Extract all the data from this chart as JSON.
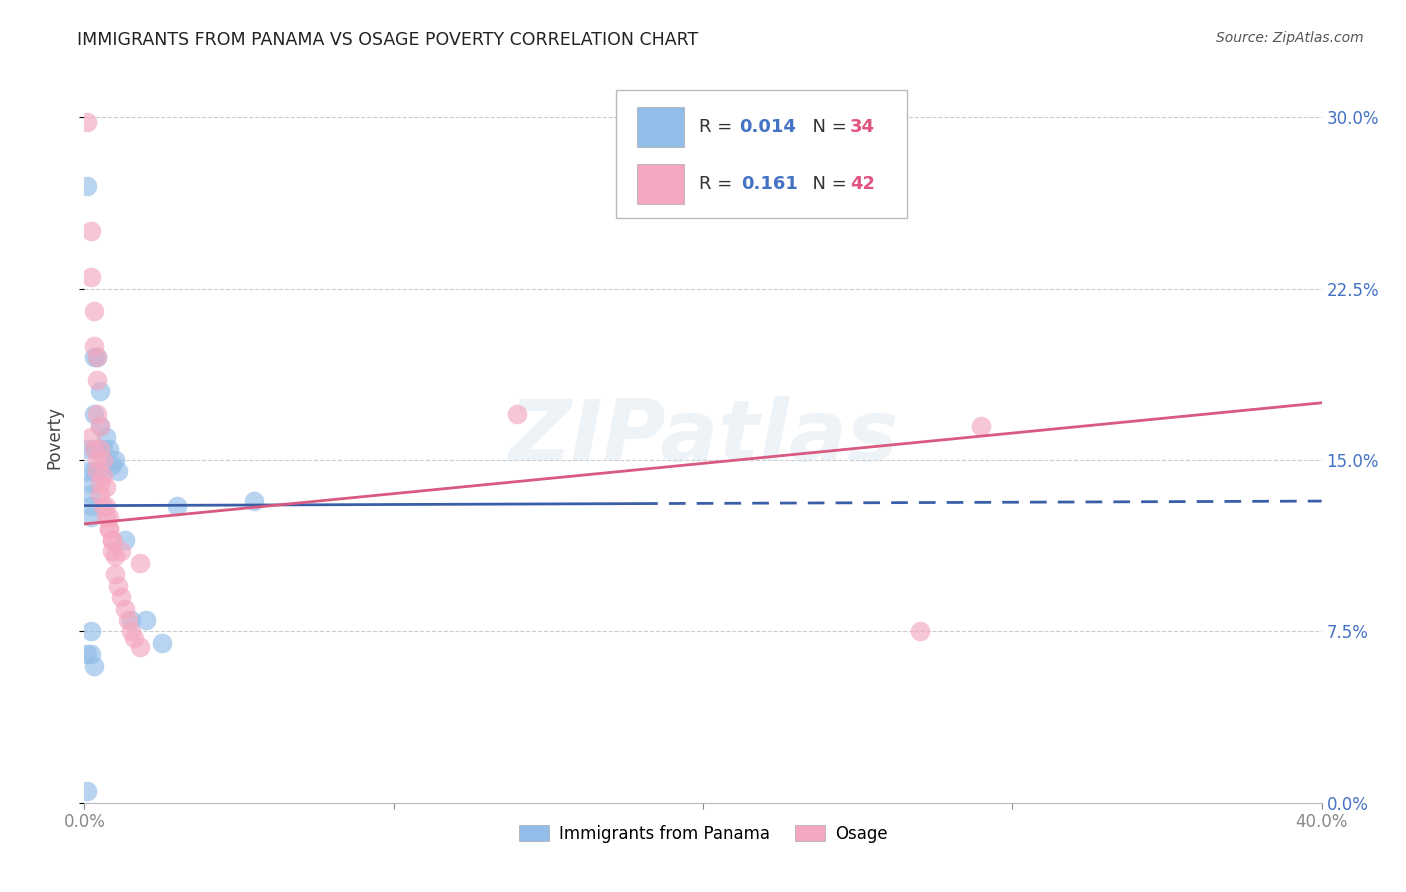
{
  "title": "IMMIGRANTS FROM PANAMA VS OSAGE POVERTY CORRELATION CHART",
  "source": "Source: ZipAtlas.com",
  "ylabel": "Poverty",
  "x_min": 0.0,
  "x_max": 0.4,
  "y_min": 0.0,
  "y_max": 0.32,
  "legend": {
    "R1": "0.014",
    "N1": "34",
    "R2": "0.161",
    "N2": "42"
  },
  "blue_scatter_x": [
    0.001,
    0.001,
    0.001,
    0.002,
    0.002,
    0.002,
    0.002,
    0.002,
    0.003,
    0.003,
    0.003,
    0.003,
    0.004,
    0.004,
    0.004,
    0.005,
    0.005,
    0.006,
    0.006,
    0.007,
    0.008,
    0.009,
    0.01,
    0.011,
    0.013,
    0.015,
    0.02,
    0.025,
    0.03,
    0.055,
    0.001,
    0.002,
    0.003,
    0.001
  ],
  "blue_scatter_y": [
    0.27,
    0.155,
    0.145,
    0.14,
    0.135,
    0.13,
    0.125,
    0.075,
    0.195,
    0.17,
    0.155,
    0.145,
    0.195,
    0.155,
    0.145,
    0.18,
    0.165,
    0.155,
    0.145,
    0.16,
    0.155,
    0.148,
    0.15,
    0.145,
    0.115,
    0.08,
    0.08,
    0.07,
    0.13,
    0.132,
    0.065,
    0.065,
    0.06,
    0.005
  ],
  "pink_scatter_x": [
    0.001,
    0.002,
    0.002,
    0.003,
    0.003,
    0.004,
    0.004,
    0.004,
    0.005,
    0.005,
    0.006,
    0.006,
    0.007,
    0.007,
    0.008,
    0.008,
    0.009,
    0.009,
    0.01,
    0.01,
    0.011,
    0.012,
    0.013,
    0.014,
    0.015,
    0.016,
    0.018,
    0.002,
    0.003,
    0.004,
    0.004,
    0.005,
    0.005,
    0.006,
    0.007,
    0.008,
    0.009,
    0.012,
    0.018,
    0.14,
    0.27,
    0.29
  ],
  "pink_scatter_y": [
    0.298,
    0.25,
    0.23,
    0.215,
    0.2,
    0.195,
    0.185,
    0.17,
    0.165,
    0.155,
    0.15,
    0.143,
    0.138,
    0.13,
    0.125,
    0.12,
    0.115,
    0.11,
    0.108,
    0.1,
    0.095,
    0.09,
    0.085,
    0.08,
    0.075,
    0.072,
    0.068,
    0.16,
    0.155,
    0.15,
    0.145,
    0.14,
    0.135,
    0.13,
    0.125,
    0.12,
    0.115,
    0.11,
    0.105,
    0.17,
    0.075,
    0.165
  ],
  "blue_line": {
    "x0": 0.0,
    "x1": 0.4,
    "y0": 0.13,
    "y1": 0.132,
    "solid_end": 0.18
  },
  "pink_line": {
    "x0": 0.0,
    "x1": 0.4,
    "y0": 0.122,
    "y1": 0.175
  },
  "blue_color": "#92BDE8",
  "pink_color": "#F4A8C0",
  "blue_line_color": "#3A5FA8",
  "pink_line_color": "#D95A80",
  "watermark": "ZIPatlas",
  "grid_color": "#CCCCCC",
  "y_ticks": [
    0.0,
    0.075,
    0.15,
    0.225,
    0.3
  ],
  "y_tick_labels": [
    "0.0%",
    "7.5%",
    "15.0%",
    "22.5%",
    "30.0%"
  ],
  "x_ticks": [
    0.0,
    0.1,
    0.2,
    0.3,
    0.4
  ],
  "x_tick_labels": [
    "0.0%",
    "",
    "",
    "",
    "40.0%"
  ]
}
